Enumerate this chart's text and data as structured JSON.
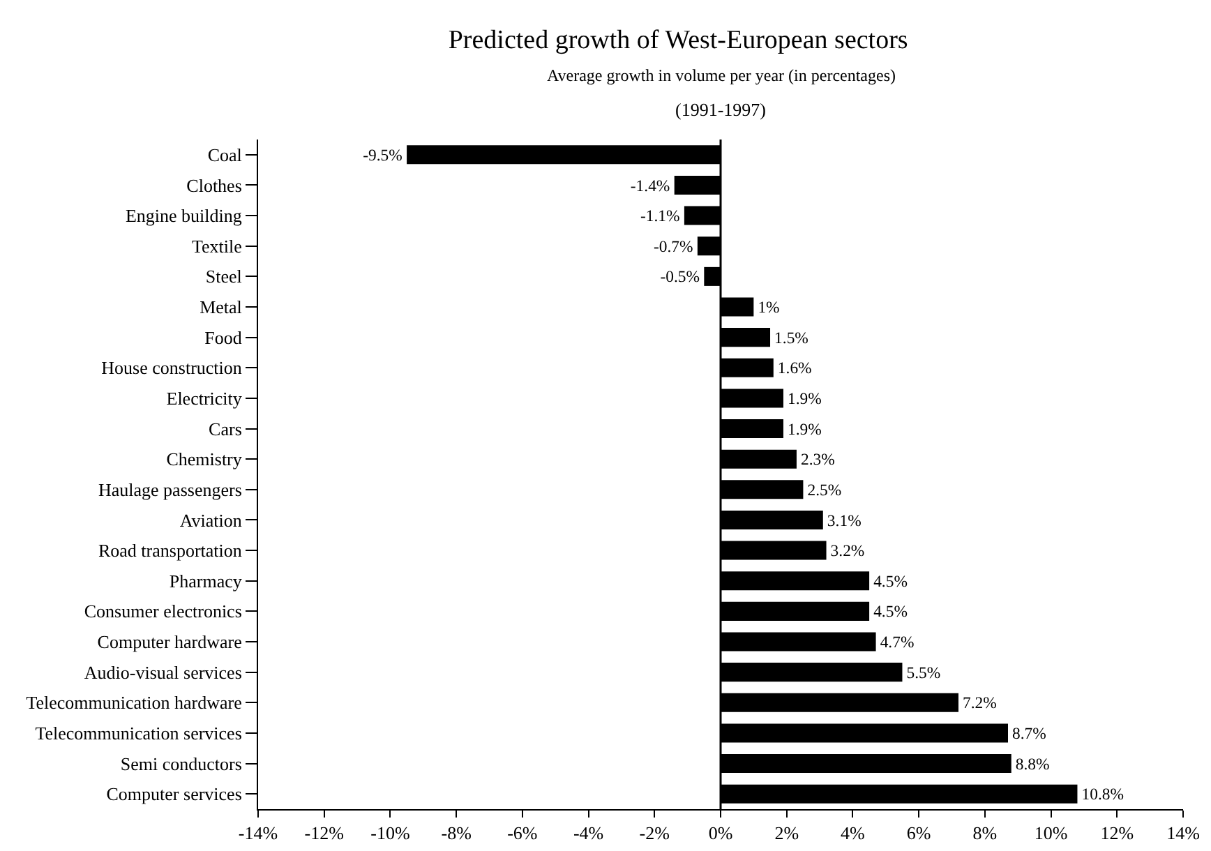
{
  "chart_data": {
    "type": "bar",
    "orientation": "horizontal",
    "title": "Predicted growth of West-European sectors",
    "subtitle": "Average growth in volume per year (in percentages)",
    "annotations": [
      "(1991-1997)"
    ],
    "categories": [
      "Coal",
      "Clothes",
      "Engine building",
      "Textile",
      "Steel",
      "Metal",
      "Food",
      "House construction",
      "Electricity",
      "Cars",
      "Chemistry",
      "Haulage passengers",
      "Aviation",
      "Road transportation",
      "Pharmacy",
      "Consumer electronics",
      "Computer hardware",
      "Audio-visual services",
      "Telecommunication hardware",
      "Telecommunication services",
      "Semi conductors",
      "Computer services"
    ],
    "values": [
      -9.5,
      -1.4,
      -1.1,
      -0.7,
      -0.5,
      1,
      1.5,
      1.6,
      1.9,
      1.9,
      2.3,
      2.5,
      3.1,
      3.2,
      4.5,
      4.5,
      4.7,
      5.5,
      7.2,
      8.7,
      8.8,
      10.8
    ],
    "value_labels": [
      "-9.5%",
      "-1.4%",
      "-1.1%",
      "-0.7%",
      "-0.5%",
      "1%",
      "1.5%",
      "1.6%",
      "1.9%",
      "1.9%",
      "2.3%",
      "2.5%",
      "3.1%",
      "3.2%",
      "4.5%",
      "4.5%",
      "4.7%",
      "5.5%",
      "7.2%",
      "8.7%",
      "8.8%",
      "10.8%"
    ],
    "color": "#000000",
    "xlim": [
      -14,
      14
    ],
    "xticks": [
      {
        "value": -14,
        "label": "-14%"
      },
      {
        "value": -12,
        "label": "-12%"
      },
      {
        "value": -10,
        "label": "-10%"
      },
      {
        "value": -8,
        "label": "-8%"
      },
      {
        "value": -6,
        "label": "-6%"
      },
      {
        "value": -4,
        "label": "-4%"
      },
      {
        "value": -2,
        "label": "-2%"
      },
      {
        "value": 0,
        "label": "0%"
      },
      {
        "value": 2,
        "label": "2%"
      },
      {
        "value": 4,
        "label": "4%"
      },
      {
        "value": 6,
        "label": "6%"
      },
      {
        "value": 8,
        "label": "8%"
      },
      {
        "value": 10,
        "label": "10%"
      },
      {
        "value": 12,
        "label": "12%"
      },
      {
        "value": 14,
        "label": "14%"
      }
    ],
    "ref_lines": [
      {
        "axis": "x",
        "value": 0,
        "color": "#000000"
      }
    ],
    "grid": false,
    "legend": false
  }
}
